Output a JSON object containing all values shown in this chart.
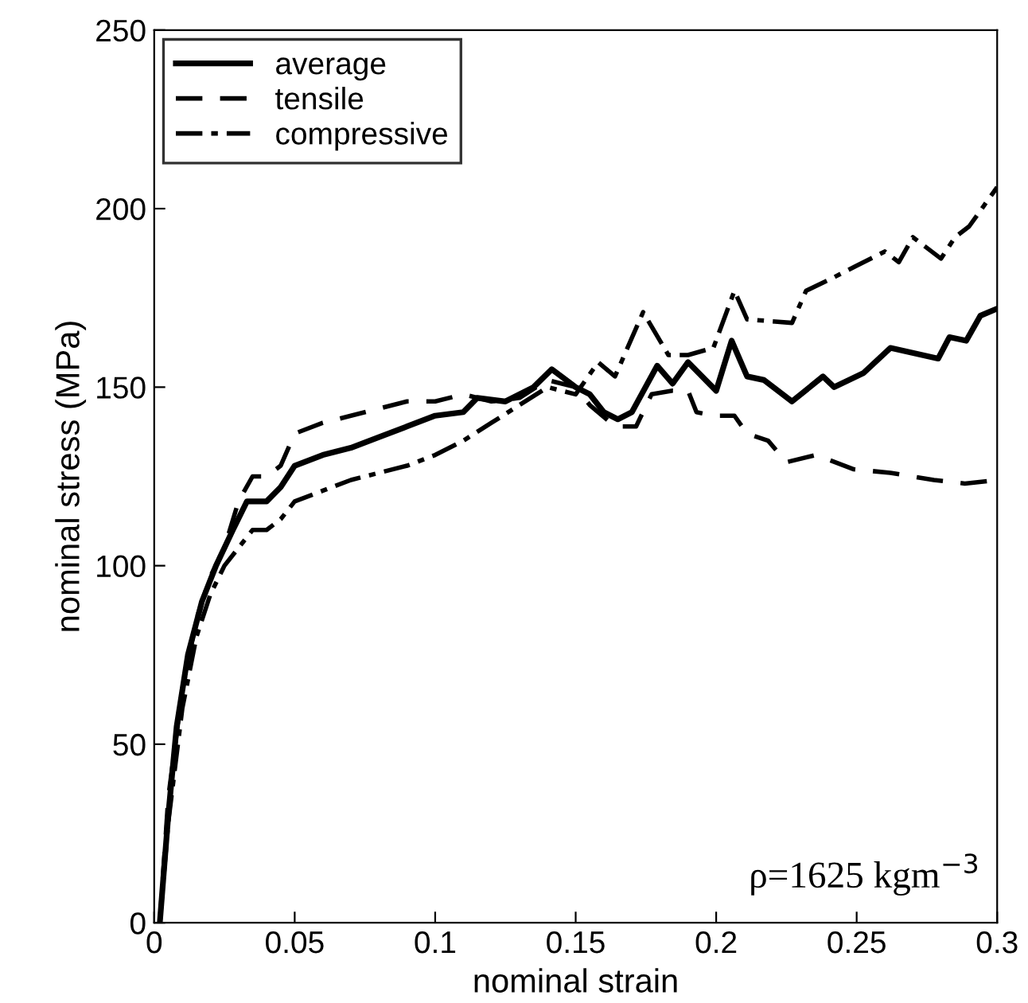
{
  "chart_data": {
    "type": "line",
    "xlabel": "nominal strain",
    "ylabel": "nominal stress (MPa)",
    "xlim": [
      0,
      0.3
    ],
    "ylim": [
      0,
      250
    ],
    "xticks": [
      0,
      0.05,
      {
        "value": 0.1,
        "label": "0.1"
      },
      0.15,
      {
        "value": 0.2,
        "label": "0.2"
      },
      0.25,
      {
        "value": 0.3,
        "label": "0.3"
      }
    ],
    "yticks": [
      0,
      50,
      100,
      150,
      200,
      250
    ],
    "grid": false,
    "legend": "top left",
    "marker": "none",
    "annotations": [
      "ρ=1625 kgm$^{−3}$"
    ],
    "series": [
      {
        "name": "average",
        "color": "#000000",
        "line_style": "solid",
        "x": [
          0.002,
          0.005,
          0.008,
          0.012,
          0.017,
          0.022,
          0.028,
          0.033,
          0.04,
          0.045,
          0.05,
          0.06,
          0.07,
          0.08,
          0.09,
          0.1,
          0.11,
          0.115,
          0.125,
          0.135,
          0.1415,
          0.15,
          0.155,
          0.16,
          0.165,
          0.17,
          0.179,
          0.1845,
          0.19,
          0.2,
          0.2055,
          0.211,
          0.217,
          0.227,
          0.238,
          0.242,
          0.2525,
          0.262,
          0.279,
          0.283,
          0.289,
          0.294,
          0.3
        ],
        "values": [
          0,
          30,
          55,
          75,
          90,
          100,
          110,
          118,
          118,
          122,
          128,
          131,
          133,
          136,
          139,
          142,
          143,
          147,
          146,
          150,
          155,
          150,
          148,
          143,
          141,
          143,
          156,
          151,
          157,
          149,
          163,
          153,
          152,
          146,
          153,
          150,
          154,
          161,
          158,
          164,
          163,
          170,
          172
        ]
      },
      {
        "name": "tensile",
        "color": "#000000",
        "line_style": "dashed",
        "x": [
          0.002,
          0.005,
          0.01,
          0.015,
          0.02,
          0.025,
          0.03,
          0.035,
          0.04,
          0.045,
          0.05,
          0.06,
          0.07,
          0.08,
          0.09,
          0.1,
          0.11,
          0.12,
          0.13,
          0.14,
          0.15,
          0.155,
          0.164,
          0.1715,
          0.177,
          0.1845,
          0.19,
          0.193,
          0.199,
          0.2065,
          0.211,
          0.2185,
          0.225,
          0.2355,
          0.249,
          0.262,
          0.2775,
          0.2885,
          0.3
        ],
        "values": [
          0,
          35,
          65,
          85,
          97,
          105,
          118,
          125,
          125,
          128,
          137,
          140,
          142,
          144,
          146,
          146,
          148,
          146,
          147,
          152,
          150,
          145,
          139,
          139,
          148,
          149,
          149,
          143,
          142,
          142,
          137,
          135,
          129,
          131,
          127,
          126,
          124,
          123,
          124
        ]
      },
      {
        "name": "compressive",
        "color": "#000000",
        "line_style": "dashdot",
        "x": [
          0.002,
          0.005,
          0.01,
          0.015,
          0.02,
          0.025,
          0.03,
          0.035,
          0.04,
          0.045,
          0.05,
          0.06,
          0.07,
          0.08,
          0.09,
          0.1,
          0.11,
          0.12,
          0.13,
          0.14,
          0.15,
          0.158,
          0.164,
          0.174,
          0.183,
          0.19,
          0.199,
          0.2065,
          0.211,
          0.227,
          0.232,
          0.24,
          0.25,
          0.26,
          0.265,
          0.27,
          0.28,
          0.285,
          0.29,
          0.3
        ],
        "values": [
          0,
          28,
          60,
          80,
          92,
          100,
          105,
          110,
          110,
          113,
          118,
          121,
          124,
          126,
          128,
          131,
          135,
          140,
          145,
          150,
          148,
          157,
          153,
          171,
          159,
          159,
          161,
          177,
          169,
          168,
          177,
          180,
          184,
          188,
          185,
          192,
          186,
          192,
          195,
          206
        ]
      }
    ]
  }
}
